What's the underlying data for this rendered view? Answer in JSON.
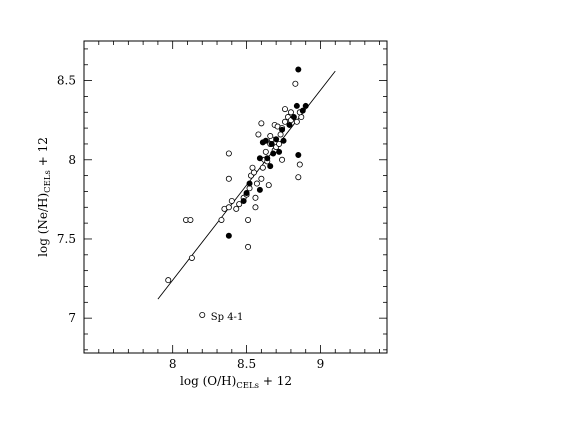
{
  "chart_data": {
    "type": "scatter",
    "xlabel": {
      "main_pre": "log  (O/H)",
      "subscript": "CELs",
      "main_post": "  +  12"
    },
    "ylabel": {
      "main_pre": "log  (Ne/H)",
      "subscript": "CELs",
      "main_post": "  +  12"
    },
    "xlim": [
      7.4,
      9.45
    ],
    "ylim": [
      6.78,
      8.75
    ],
    "x_ticks": [
      {
        "value": 8,
        "label": "8"
      },
      {
        "value": 8.5,
        "label": "8.5"
      },
      {
        "value": 9,
        "label": "9"
      }
    ],
    "y_ticks": [
      {
        "value": 7,
        "label": "7"
      },
      {
        "value": 7.5,
        "label": "7.5"
      },
      {
        "value": 8,
        "label": "8"
      },
      {
        "value": 8.5,
        "label": "8.5"
      }
    ],
    "x_minor_step": 0.1,
    "y_minor_step": 0.1,
    "grid": false,
    "fit_line": {
      "x": [
        7.9,
        9.1
      ],
      "y": [
        7.12,
        8.56
      ]
    },
    "annotation": {
      "text": "Sp 4-1",
      "x": 8.19,
      "y": 7.02
    },
    "series": [
      {
        "marker": "filled-circle",
        "color": "#000000",
        "points": [
          [
            8.85,
            8.57
          ],
          [
            8.84,
            8.34
          ],
          [
            8.88,
            8.31
          ],
          [
            8.9,
            8.34
          ],
          [
            8.82,
            8.27
          ],
          [
            8.79,
            8.22
          ],
          [
            8.74,
            8.19
          ],
          [
            8.7,
            8.13
          ],
          [
            8.67,
            8.1
          ],
          [
            8.63,
            8.12
          ],
          [
            8.61,
            8.11
          ],
          [
            8.59,
            8.01
          ],
          [
            8.64,
            8.01
          ],
          [
            8.66,
            7.96
          ],
          [
            8.68,
            8.04
          ],
          [
            8.72,
            8.05
          ],
          [
            8.75,
            8.12
          ],
          [
            8.85,
            8.03
          ],
          [
            8.52,
            7.85
          ],
          [
            8.5,
            7.79
          ],
          [
            8.48,
            7.74
          ],
          [
            8.59,
            7.81
          ],
          [
            8.38,
            7.52
          ]
        ]
      },
      {
        "marker": "open-circle",
        "color": "#000000",
        "points": [
          [
            7.97,
            7.24
          ],
          [
            8.13,
            7.38
          ],
          [
            8.09,
            7.62
          ],
          [
            8.12,
            7.62
          ],
          [
            8.2,
            7.02
          ],
          [
            8.33,
            7.62
          ],
          [
            8.35,
            7.69
          ],
          [
            8.38,
            7.7
          ],
          [
            8.4,
            7.74
          ],
          [
            8.38,
            7.88
          ],
          [
            8.38,
            8.04
          ],
          [
            8.43,
            7.69
          ],
          [
            8.45,
            7.72
          ],
          [
            8.48,
            7.76
          ],
          [
            8.5,
            7.78
          ],
          [
            8.52,
            7.82
          ],
          [
            8.53,
            7.9
          ],
          [
            8.51,
            7.62
          ],
          [
            8.51,
            7.45
          ],
          [
            8.55,
            7.92
          ],
          [
            8.57,
            7.85
          ],
          [
            8.56,
            7.76
          ],
          [
            8.56,
            7.7
          ],
          [
            8.6,
            7.88
          ],
          [
            8.61,
            7.95
          ],
          [
            8.62,
            8.0
          ],
          [
            8.65,
            7.84
          ],
          [
            8.58,
            8.16
          ],
          [
            8.6,
            8.23
          ],
          [
            8.63,
            8.05
          ],
          [
            8.66,
            8.1
          ],
          [
            8.67,
            8.13
          ],
          [
            8.69,
            8.06
          ],
          [
            8.7,
            8.08
          ],
          [
            8.72,
            8.1
          ],
          [
            8.73,
            8.16
          ],
          [
            8.69,
            8.22
          ],
          [
            8.71,
            8.21
          ],
          [
            8.74,
            8.2
          ],
          [
            8.76,
            8.24
          ],
          [
            8.76,
            8.32
          ],
          [
            8.78,
            8.27
          ],
          [
            8.8,
            8.25
          ],
          [
            8.8,
            8.3
          ],
          [
            8.83,
            8.48
          ],
          [
            8.84,
            8.24
          ],
          [
            8.87,
            8.27
          ],
          [
            8.86,
            8.3
          ],
          [
            8.86,
            7.97
          ],
          [
            8.85,
            7.89
          ],
          [
            8.74,
            8.0
          ],
          [
            8.66,
            8.15
          ],
          [
            8.64,
            7.99
          ],
          [
            8.54,
            7.95
          ]
        ]
      }
    ]
  }
}
